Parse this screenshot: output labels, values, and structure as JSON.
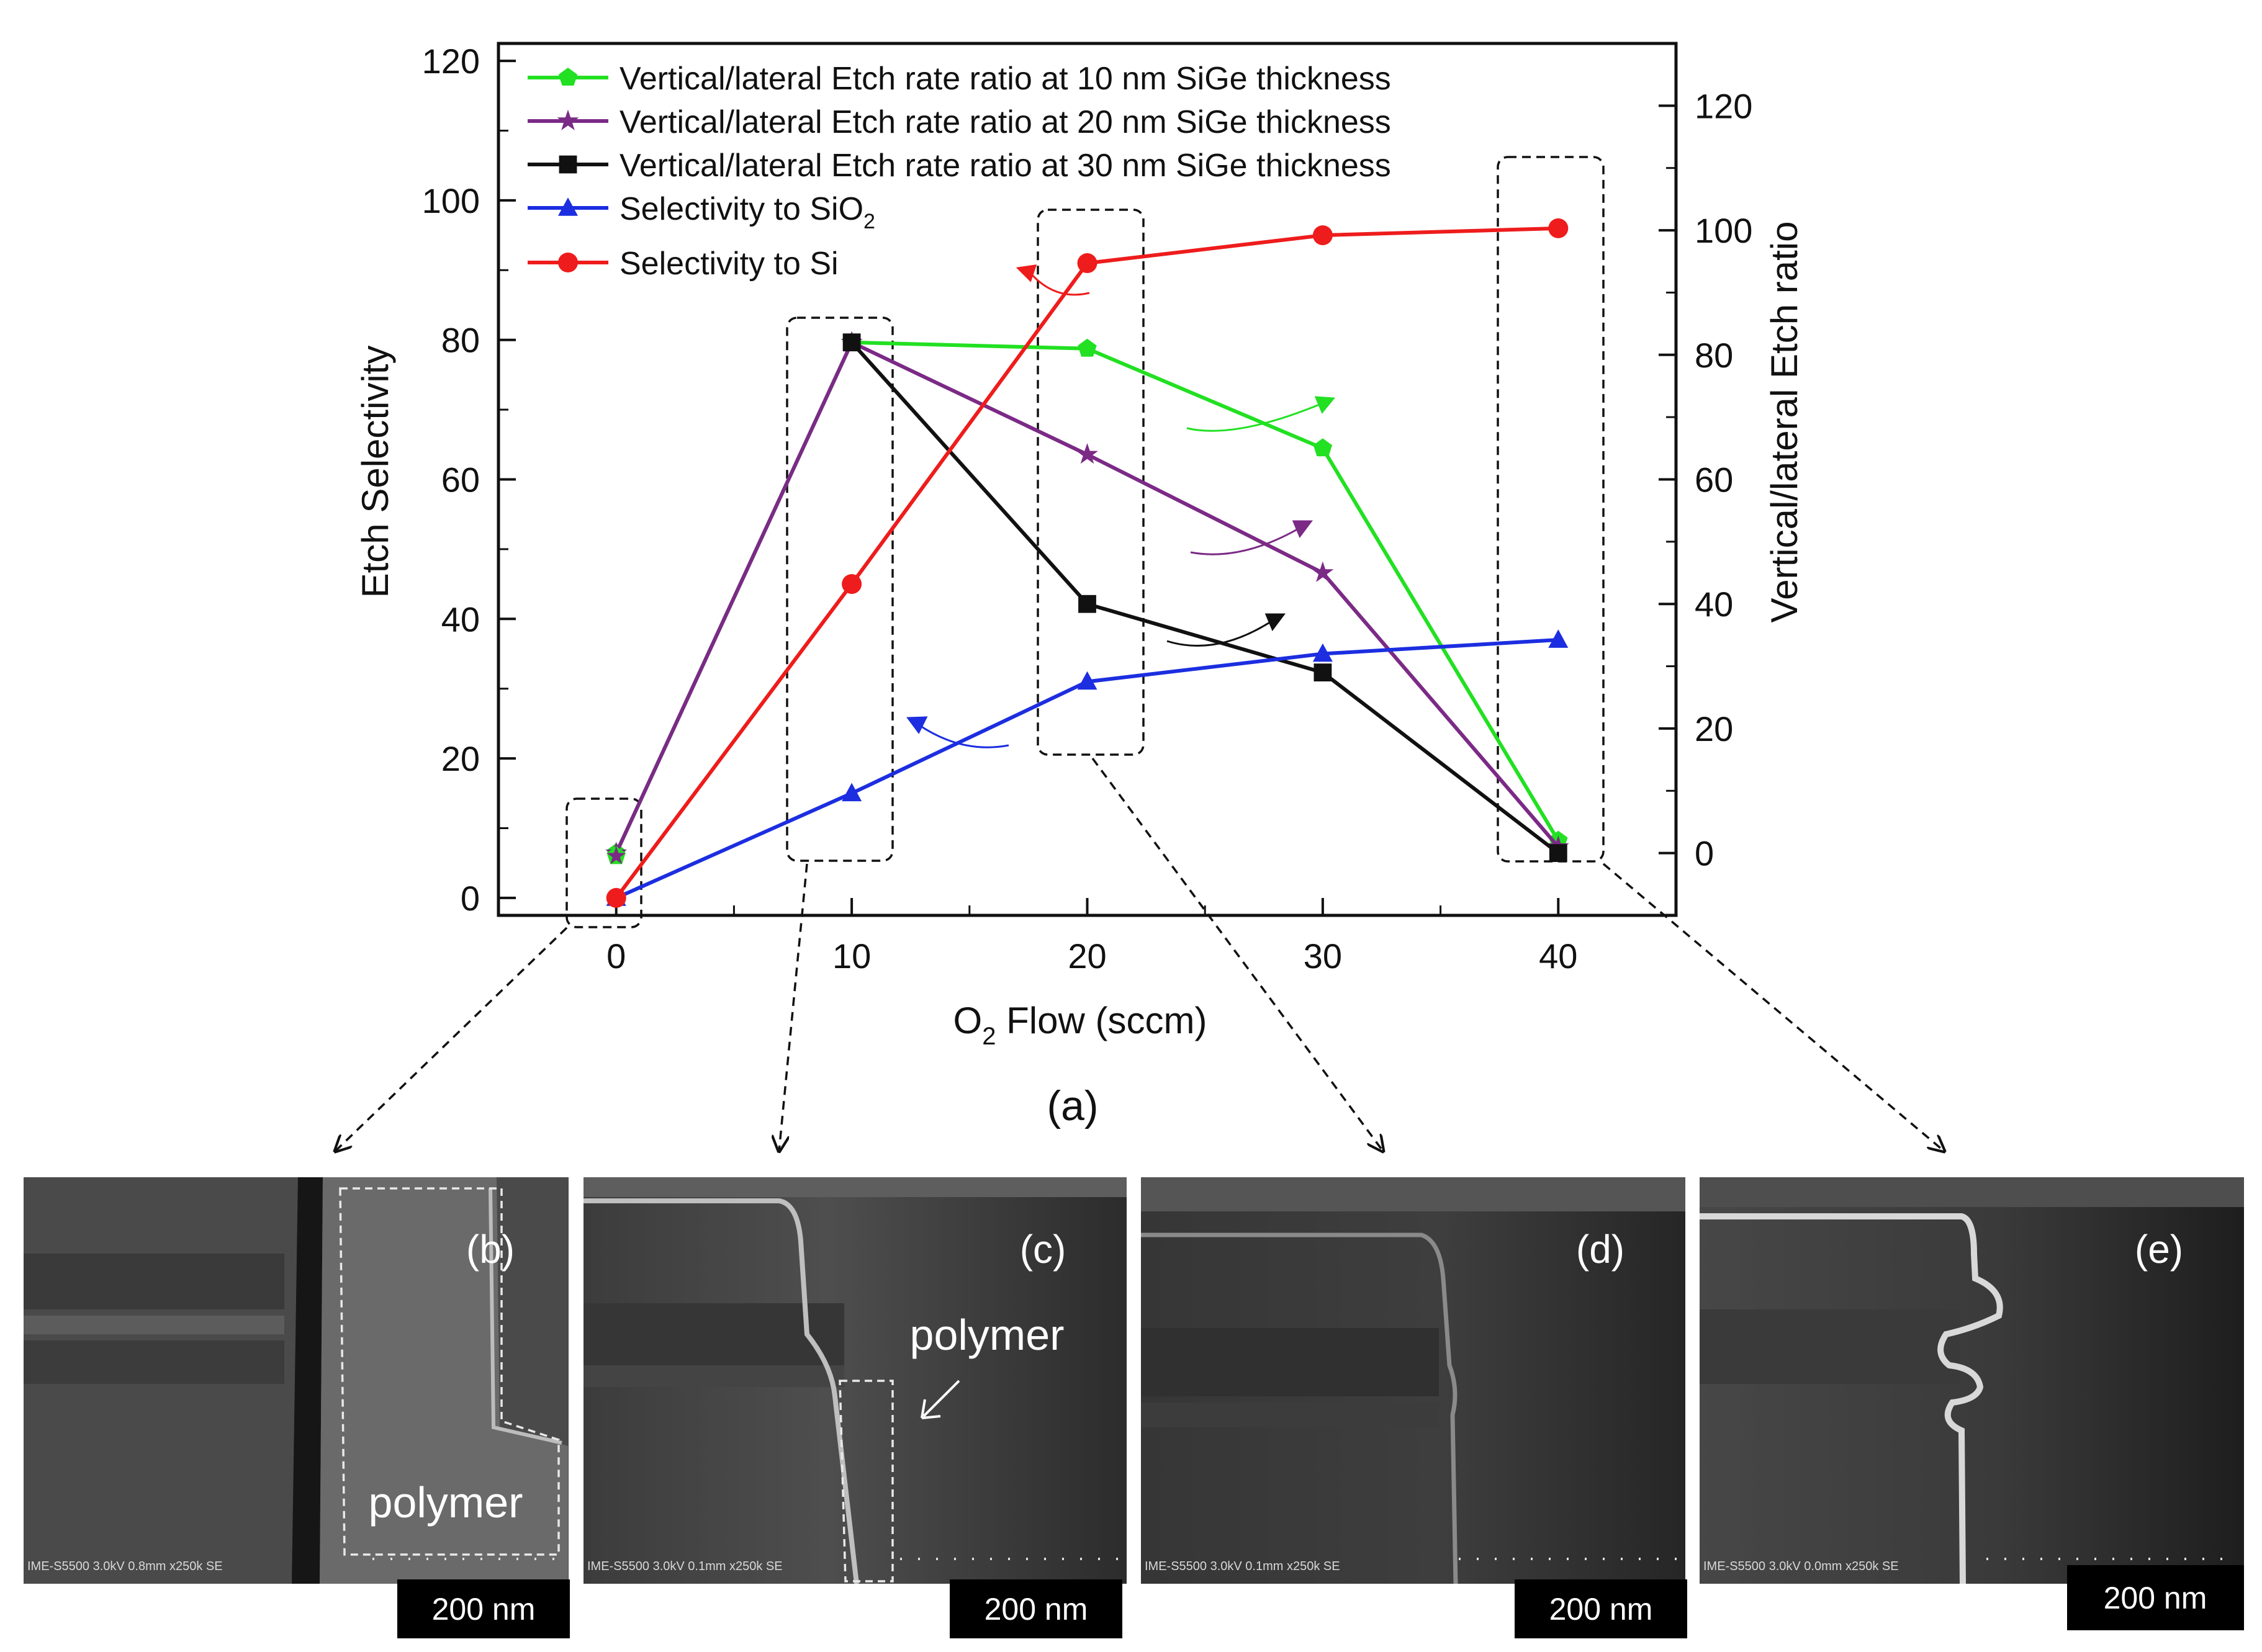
{
  "chart_data": {
    "type": "line",
    "x": [
      0,
      10,
      20,
      30,
      40
    ],
    "xlabel": "O2 Flow (sccm)",
    "xlabel_main": "O",
    "xlabel_sub": "2",
    "xlabel_rest": " Flow (sccm)",
    "xlim": [
      -5,
      45
    ],
    "xticks": [
      "0",
      "10",
      "20",
      "30",
      "40"
    ],
    "ylabel_left": "Etch Selectivity",
    "ylim_left": [
      -2.5,
      122.5
    ],
    "yticks_left": [
      "0",
      "20",
      "40",
      "60",
      "80",
      "100",
      "120"
    ],
    "ylabel_right": "Vertical/lateral Etch ratio",
    "ylim_right": [
      -10,
      130
    ],
    "yticks_right": [
      "0",
      "20",
      "40",
      "60",
      "80",
      "100",
      "120"
    ],
    "caption": "(a)",
    "legend_position": "top-left",
    "series": [
      {
        "name": "Vertical/lateral Etch rate ratio at 10 nm SiGe  thickness",
        "axis": "right",
        "marker": "pentagon",
        "color": "#22e022",
        "x": [
          0,
          10,
          20,
          30,
          40
        ],
        "values": [
          0,
          82,
          81,
          65,
          2
        ]
      },
      {
        "name": "Vertical/lateral Etch rate ratio at 20 nm SiGe  thickness",
        "axis": "right",
        "marker": "star",
        "color": "#7b2a86",
        "x": [
          0,
          10,
          20,
          30,
          40
        ],
        "values": [
          0,
          82,
          64,
          45,
          1
        ]
      },
      {
        "name": "Vertical/lateral Etch rate ratio at 30 nm SiGe  thickness",
        "axis": "right",
        "marker": "square",
        "color": "#111111",
        "x": [
          10,
          20,
          30,
          40
        ],
        "values": [
          82,
          40,
          29,
          0
        ]
      },
      {
        "name_main": "Selectivity to SiO",
        "name_sub": "2",
        "name": "Selectivity to SiO2",
        "axis": "left",
        "marker": "triangle",
        "color": "#1c2ee0",
        "x": [
          0,
          10,
          20,
          30,
          40
        ],
        "values": [
          0,
          15,
          31,
          35,
          37
        ]
      },
      {
        "name": "Selectivity to Si",
        "axis": "left",
        "marker": "circle",
        "color": "#ee1c1c",
        "x": [
          0,
          10,
          20,
          30,
          40
        ],
        "values": [
          0,
          45,
          91,
          95,
          96
        ]
      }
    ],
    "extra_points": [
      {
        "series_marker": "star-overlay",
        "x": 0,
        "y_left": 6
      }
    ]
  },
  "panels": [
    {
      "label": "(b)",
      "scalebar": "200 nm",
      "annotation": "polymer",
      "info": "IME-S5500 3.0kV 0.8mm x250k SE"
    },
    {
      "label": "(c)",
      "scalebar": "200 nm",
      "annotation": "polymer",
      "info": "IME-S5500 3.0kV 0.1mm x250k SE"
    },
    {
      "label": "(d)",
      "scalebar": "200 nm",
      "info": "IME-S5500 3.0kV 0.1mm x250k SE"
    },
    {
      "label": "(e)",
      "scalebar": "200 nm",
      "info": "IME-S5500 3.0kV 0.0mm x250k SE"
    }
  ],
  "colors": {
    "frame": "#111111",
    "sem_dark": "#2a2a2a",
    "sem_mid": "#4a4a4a",
    "sem_light": "#bcbcbc",
    "scalebar_bg": "#000000",
    "scalebar_text": "#ffffff"
  }
}
